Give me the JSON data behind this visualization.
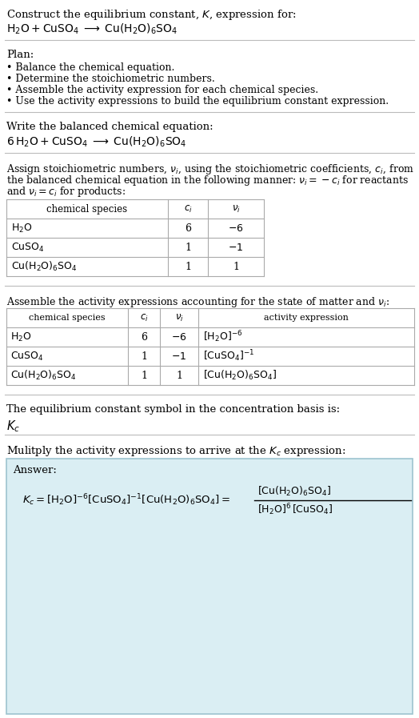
{
  "bg_color": "#ffffff",
  "text_color": "#000000",
  "title_line1": "Construct the equilibrium constant, $K$, expression for:",
  "title_line2": "$\\mathrm{H_2O + CuSO_4 \\;\\longrightarrow\\; Cu(H_2O)_6SO_4}$",
  "plan_header": "Plan:",
  "plan_items": [
    "• Balance the chemical equation.",
    "• Determine the stoichiometric numbers.",
    "• Assemble the activity expression for each chemical species.",
    "• Use the activity expressions to build the equilibrium constant expression."
  ],
  "balanced_eq_header": "Write the balanced chemical equation:",
  "balanced_eq": "$\\mathrm{6\\,H_2O + CuSO_4 \\;\\longrightarrow\\; Cu(H_2O)_6SO_4}$",
  "stoich_lines": [
    "Assign stoichiometric numbers, $\\nu_i$, using the stoichiometric coefficients, $c_i$, from",
    "the balanced chemical equation in the following manner: $\\nu_i = -c_i$ for reactants",
    "and $\\nu_i = c_i$ for products:"
  ],
  "table1_rows": [
    [
      "$\\mathrm{H_2O}$",
      "6",
      "$-6$"
    ],
    [
      "$\\mathrm{CuSO_4}$",
      "1",
      "$-1$"
    ],
    [
      "$\\mathrm{Cu(H_2O)_6SO_4}$",
      "1",
      "1"
    ]
  ],
  "activity_header": "Assemble the activity expressions accounting for the state of matter and $\\nu_i$:",
  "table2_rows": [
    [
      "$\\mathrm{H_2O}$",
      "6",
      "$-6$",
      "$[\\mathrm{H_2O}]^{-6}$"
    ],
    [
      "$\\mathrm{CuSO_4}$",
      "1",
      "$-1$",
      "$[\\mathrm{CuSO_4}]^{-1}$"
    ],
    [
      "$\\mathrm{Cu(H_2O)_6SO_4}$",
      "1",
      "1",
      "$[\\mathrm{Cu(H_2O)_6SO_4}]$"
    ]
  ],
  "kc_text": "The equilibrium constant symbol in the concentration basis is:",
  "kc_symbol": "$K_c$",
  "multiply_text": "Mulitply the activity expressions to arrive at the $K_c$ expression:",
  "answer_label": "Answer:",
  "answer_box_color": "#daeef3",
  "answer_box_border": "#9dc3cf"
}
